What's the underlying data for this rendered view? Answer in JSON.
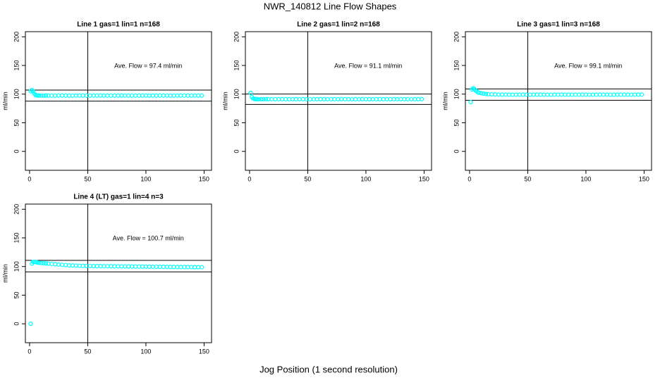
{
  "title": "NWR_140812  Line Flow Shapes",
  "xlabel": "Jog Position (1 second resolution)",
  "chart_data": [
    {
      "type": "scatter",
      "title": "Line 1 gas=1 lin=1 n=168",
      "ylabel": "ml/min",
      "annotation": "Ave. Flow =  97.4  ml/min",
      "color": "#00ffff",
      "x": [
        1,
        2,
        3,
        4,
        5,
        6,
        7,
        8,
        10,
        12,
        14,
        16,
        19,
        22,
        25,
        28,
        31,
        34,
        37,
        40,
        43,
        46,
        49,
        52,
        55,
        58,
        61,
        64,
        67,
        70,
        73,
        76,
        79,
        82,
        85,
        88,
        91,
        94,
        97,
        100,
        103,
        106,
        109,
        112,
        115,
        118,
        121,
        124,
        127,
        130,
        133,
        136,
        139,
        142,
        145,
        148
      ],
      "values": [
        105,
        107,
        105,
        101,
        98.5,
        97.8,
        97.5,
        97.4,
        97.4,
        97.3,
        97.5,
        97.4,
        97.4,
        97.3,
        97.4,
        97.5,
        97.4,
        97.4,
        97.3,
        97.4,
        97.4,
        97.5,
        97.4,
        97.3,
        97.4,
        97.4,
        97.5,
        97.4,
        97.4,
        97.3,
        97.4,
        97.4,
        97.5,
        97.4,
        97.4,
        97.3,
        97.4,
        97.4,
        97.5,
        97.4,
        97.3,
        97.4,
        97.4,
        97.5,
        97.4,
        97.4,
        97.3,
        97.4,
        97.4,
        97.5,
        97.4,
        97.4,
        97.3,
        97.4,
        97.4,
        97.5
      ],
      "hlines": [
        107.1,
        87.7
      ],
      "vlines": [
        50
      ],
      "xlim": [
        -3.6,
        156.4
      ],
      "ylim": [
        -33,
        209
      ],
      "xticks": [
        0,
        50,
        100,
        150
      ],
      "yticks": [
        0,
        50,
        100,
        150,
        200
      ]
    },
    {
      "type": "scatter",
      "title": "Line 2 gas=1 lin=2 n=168",
      "ylabel": "ml/min",
      "annotation": "Ave. Flow =  91.1  ml/min",
      "color": "#00ffff",
      "x": [
        1,
        2,
        3,
        4,
        5,
        6,
        7,
        8,
        10,
        12,
        14,
        16,
        19,
        22,
        25,
        28,
        31,
        34,
        37,
        40,
        43,
        46,
        49,
        52,
        55,
        58,
        61,
        64,
        67,
        70,
        73,
        76,
        79,
        82,
        85,
        88,
        91,
        94,
        97,
        100,
        103,
        106,
        109,
        112,
        115,
        118,
        121,
        124,
        127,
        130,
        133,
        136,
        139,
        142,
        145,
        148
      ],
      "values": [
        102,
        95,
        92.5,
        91.5,
        91.2,
        91.1,
        91.1,
        91,
        91.1,
        91,
        91.2,
        91.1,
        91.1,
        91,
        91.1,
        91.2,
        91.1,
        91.1,
        91,
        91.1,
        91.1,
        91.2,
        91.1,
        91,
        91.1,
        91.1,
        91.2,
        91.1,
        91.1,
        91,
        91.1,
        91.1,
        91.2,
        91.1,
        91.1,
        91,
        91.1,
        91.1,
        91.2,
        91.1,
        91,
        91.1,
        91.1,
        91.2,
        91.1,
        91.1,
        91,
        91.1,
        91.1,
        91.2,
        91.1,
        91.1,
        91,
        91.1,
        91.1,
        91.2
      ],
      "hlines": [
        100.2,
        82
      ],
      "vlines": [
        50
      ],
      "xlim": [
        -3.6,
        156.4
      ],
      "ylim": [
        -33,
        209
      ],
      "xticks": [
        0,
        50,
        100,
        150
      ],
      "yticks": [
        0,
        50,
        100,
        150,
        200
      ]
    },
    {
      "type": "scatter",
      "title": "Line 3 gas=1 lin=3 n=168",
      "ylabel": "ml/min",
      "annotation": "Ave. Flow =  99.1  ml/min",
      "color": "#00ffff",
      "x": [
        1,
        2,
        3,
        4,
        5,
        6,
        7,
        8,
        10,
        12,
        14,
        16,
        19,
        22,
        25,
        28,
        31,
        34,
        37,
        40,
        43,
        46,
        49,
        52,
        55,
        58,
        61,
        64,
        67,
        70,
        73,
        76,
        79,
        82,
        85,
        88,
        91,
        94,
        97,
        100,
        103,
        106,
        109,
        112,
        115,
        118,
        121,
        124,
        127,
        130,
        133,
        136,
        139,
        142,
        145,
        148
      ],
      "values": [
        86,
        108,
        110,
        109,
        107,
        105,
        103.5,
        102.5,
        101.5,
        100.8,
        100.3,
        99.9,
        99.6,
        99.4,
        99.3,
        99.2,
        99.1,
        99.1,
        99,
        99.1,
        99.1,
        99.2,
        99.1,
        99,
        99.1,
        99.1,
        99.2,
        99.1,
        99.1,
        99,
        99.1,
        99.1,
        99.2,
        99.1,
        99.1,
        99,
        99.1,
        99.1,
        99.2,
        99.1,
        99,
        99.1,
        99.1,
        99.2,
        99.1,
        99.1,
        99,
        99.1,
        99.1,
        99.2,
        99.1,
        99.1,
        99,
        99.1,
        99.1,
        99.2
      ],
      "hlines": [
        109,
        89.2
      ],
      "vlines": [
        50
      ],
      "xlim": [
        -3.6,
        156.4
      ],
      "ylim": [
        -33,
        209
      ],
      "xticks": [
        0,
        50,
        100,
        150
      ],
      "yticks": [
        0,
        50,
        100,
        150,
        200
      ]
    },
    {
      "type": "scatter",
      "title": "Line 4 (LT) gas=1 lin=4 n=3",
      "ylabel": "ml/min",
      "annotation": "Ave. Flow =  100.7  ml/min",
      "color": "#00ffff",
      "x": [
        1,
        2,
        3,
        4,
        5,
        6,
        7,
        8,
        10,
        12,
        14,
        16,
        19,
        22,
        25,
        28,
        31,
        34,
        37,
        40,
        43,
        46,
        49,
        52,
        55,
        58,
        61,
        64,
        67,
        70,
        73,
        76,
        79,
        82,
        85,
        88,
        91,
        94,
        97,
        100,
        103,
        106,
        109,
        112,
        115,
        118,
        121,
        124,
        127,
        130,
        133,
        136,
        139,
        142,
        145,
        148
      ],
      "values": [
        0,
        105,
        108,
        108,
        108,
        107.5,
        107,
        106.5,
        106,
        105.8,
        105.5,
        105,
        104.5,
        104,
        103.5,
        103,
        102.5,
        102,
        101.8,
        101.5,
        101.3,
        101.1,
        101,
        100.8,
        100.7,
        100.6,
        100.6,
        100.5,
        100.5,
        100.4,
        100.3,
        100.3,
        100.2,
        100.1,
        100.1,
        100,
        100,
        99.9,
        99.8,
        99.8,
        99.7,
        99.7,
        99.6,
        99.5,
        99.5,
        99.4,
        99.4,
        99.3,
        99.2,
        99.2,
        99.1,
        99.1,
        99,
        98.9,
        98.9,
        98.8
      ],
      "hlines": [
        110.8,
        90.6
      ],
      "vlines": [
        50
      ],
      "xlim": [
        -3.6,
        156.4
      ],
      "ylim": [
        -33,
        209
      ],
      "xticks": [
        0,
        50,
        100,
        150
      ],
      "yticks": [
        0,
        50,
        100,
        150,
        200
      ]
    }
  ]
}
